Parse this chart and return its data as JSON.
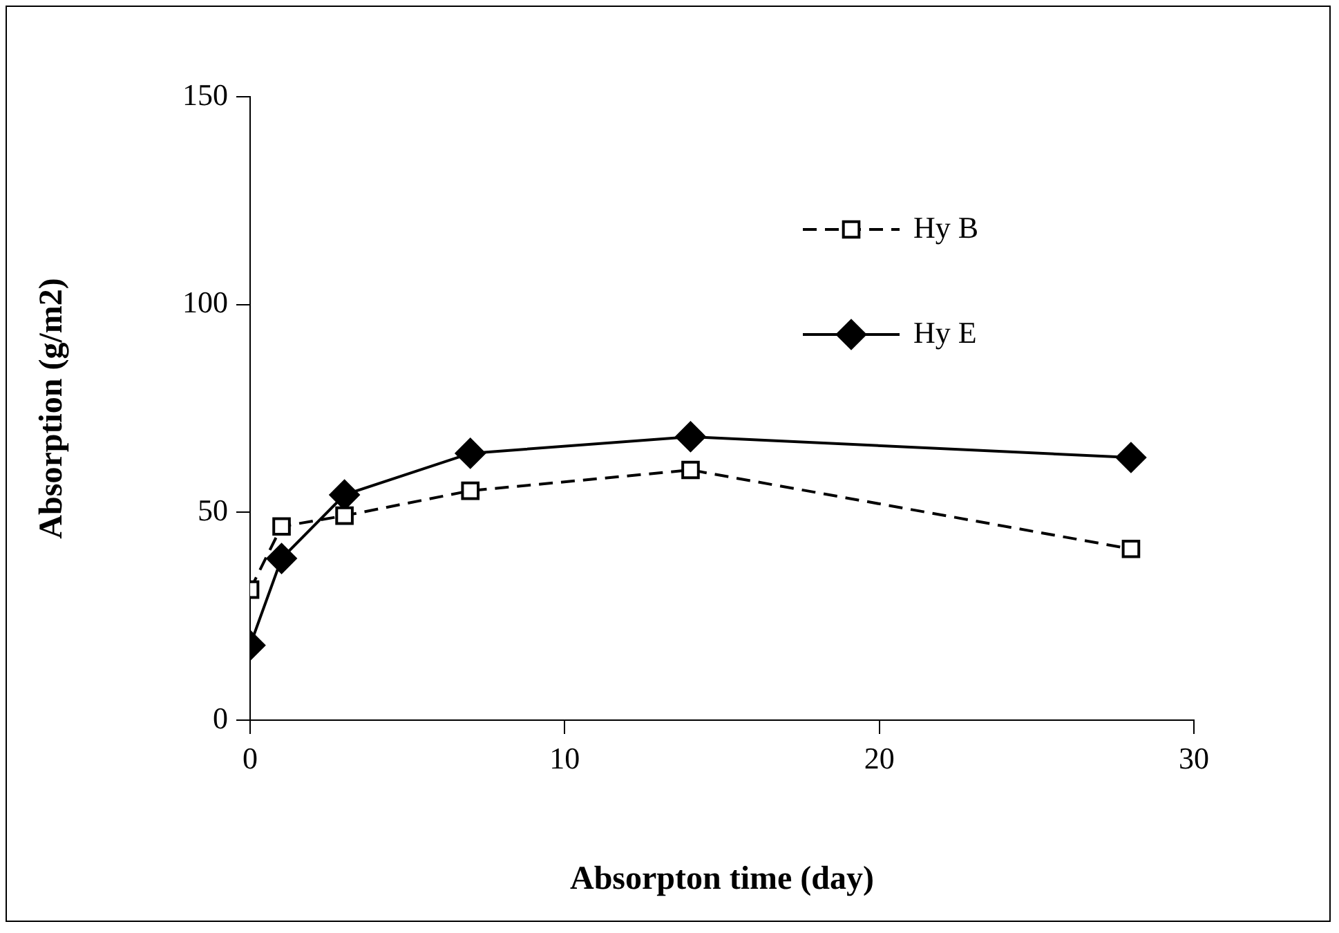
{
  "chart_data": {
    "type": "line",
    "xlabel": "Absorpton time (day)",
    "ylabel": "Absorption (g/m2)",
    "x": [
      0,
      1,
      3,
      7,
      14,
      28
    ],
    "series": [
      {
        "name": "Hy B",
        "color": "#000000",
        "values": [
          31.4,
          46.6,
          49.2,
          55.2,
          60.2,
          41.2
        ],
        "marker": "square",
        "line_style": "dashed"
      },
      {
        "name": "Hy E",
        "color": "#000000",
        "values": [
          18,
          38.9,
          54.2,
          64.2,
          68.2,
          63.2
        ],
        "marker": "diamond",
        "line_style": "solid"
      }
    ],
    "xlim": [
      0,
      30
    ],
    "xticks": [
      0,
      10,
      20,
      30
    ],
    "ylim": [
      0,
      150
    ],
    "yticks": [
      0,
      50,
      100,
      150
    ],
    "grid": false,
    "legend": "top right"
  }
}
